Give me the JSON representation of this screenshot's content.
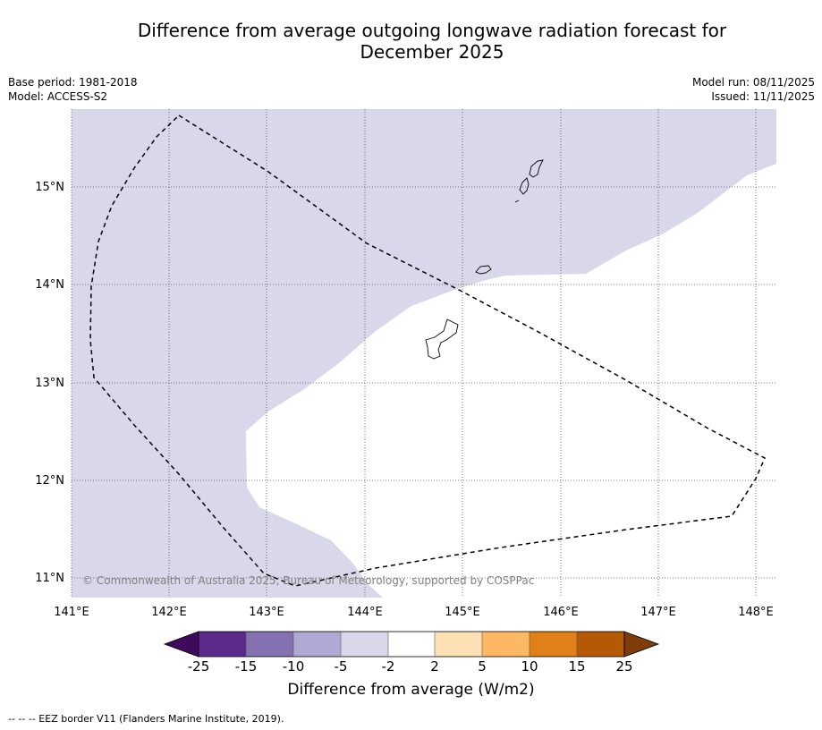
{
  "title_line1": "Difference from average outgoing longwave radiation forecast for",
  "title_line2": "December 2025",
  "meta_left": {
    "base_period": "Base period: 1981-2018",
    "model": "Model: ACCESS-S2"
  },
  "meta_right": {
    "model_run": "Model run: 08/11/2025",
    "issued": "Issued: 11/11/2025"
  },
  "map": {
    "lon_ticks": [
      "141°E",
      "142°E",
      "143°E",
      "144°E",
      "145°E",
      "146°E",
      "147°E",
      "148°E"
    ],
    "lat_ticks": [
      "15°N",
      "14°N",
      "13°N",
      "12°N",
      "11°N"
    ],
    "copyright": "© Commonwealth of Australia 2025, Bureau of Meteorology, supported by COSPPac",
    "colors": {
      "anomaly_minus5_to_minus2": "#d8d8ea",
      "neutral": "#ffffff"
    }
  },
  "colorbar": {
    "ticks": [
      "-25",
      "-15",
      "-10",
      "-5",
      "-2",
      "2",
      "5",
      "10",
      "15",
      "25"
    ],
    "colors": [
      "#3f0a5e",
      "#5c2a8c",
      "#8371b0",
      "#b1a8d3",
      "#d8d8ea",
      "#ffffff",
      "#fde0b4",
      "#fcb862",
      "#e08017",
      "#b65907",
      "#7f3b08"
    ],
    "label": "Difference from average (W/m2)"
  },
  "footnote": "--  --  -- EEZ border V11 (Flanders Marine Institute, 2019)."
}
